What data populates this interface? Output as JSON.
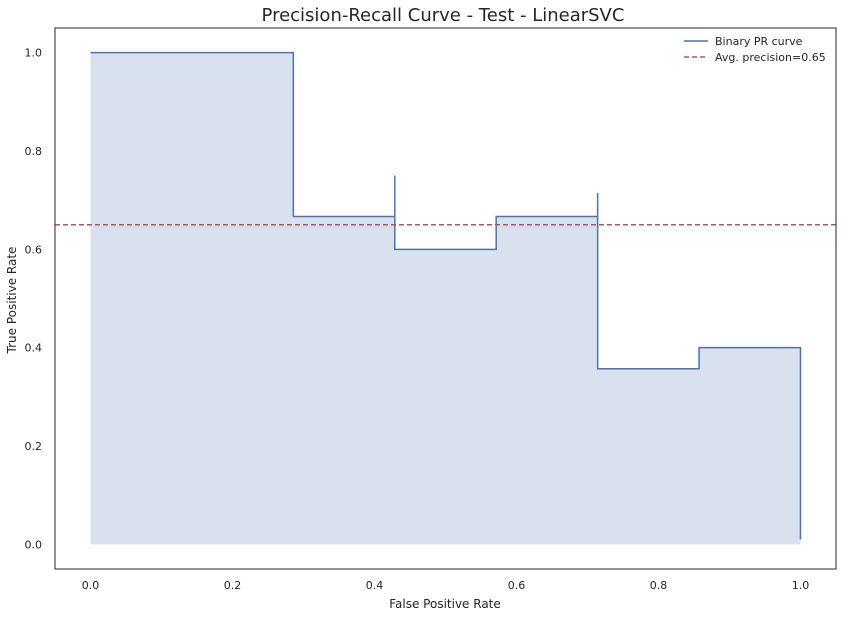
{
  "chart_data": {
    "type": "area",
    "title": "Precision-Recall Curve - Test - LinearSVC",
    "xlabel": "False Positive Rate",
    "ylabel": "True Positive Rate",
    "xlim": [
      -0.05,
      1.05
    ],
    "ylim": [
      -0.05,
      1.05
    ],
    "xticks": [
      0.0,
      0.2,
      0.4,
      0.6,
      0.8,
      1.0
    ],
    "yticks": [
      0.0,
      0.2,
      0.4,
      0.6,
      0.8,
      1.0
    ],
    "xtick_labels": [
      "0.0",
      "0.2",
      "0.4",
      "0.6",
      "0.8",
      "1.0"
    ],
    "ytick_labels": [
      "0.0",
      "0.2",
      "0.4",
      "0.6",
      "0.8",
      "1.0"
    ],
    "grid": false,
    "legend_position": "top-right",
    "series": [
      {
        "name": "Binary PR curve",
        "style": "step",
        "color": "#4c72b0",
        "fill_color": "#dae1ee",
        "x": [
          0.0,
          0.2857,
          0.2857,
          0.4286,
          0.4286,
          0.5714,
          0.7143,
          0.7143,
          0.8571,
          1.0
        ],
        "y": [
          1.0,
          1.0,
          0.6667,
          0.75,
          0.6,
          0.6667,
          0.7143,
          0.3571,
          0.4,
          0.01
        ]
      }
    ],
    "reference_lines": [
      {
        "name": "Avg. precision=0.65",
        "orientation": "horizontal",
        "value": 0.65,
        "style": "dashed",
        "color": "#c44e52"
      }
    ]
  }
}
